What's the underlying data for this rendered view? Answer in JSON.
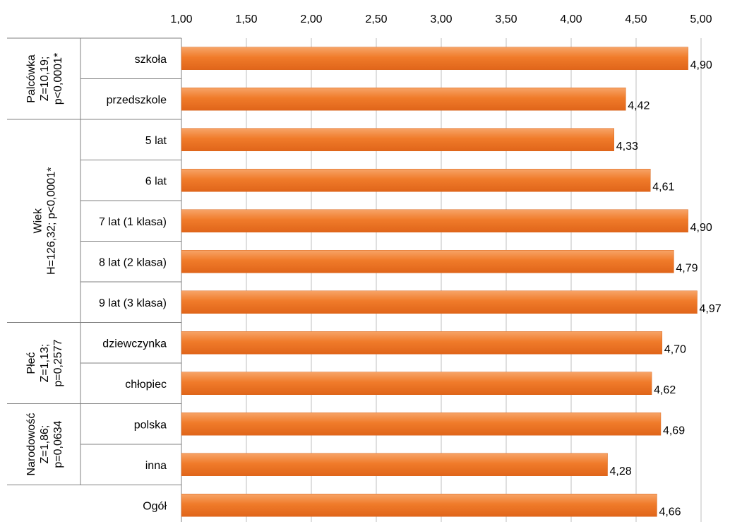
{
  "chart_data": {
    "type": "bar",
    "orientation": "horizontal",
    "xlim": [
      1.0,
      5.0
    ],
    "ticks": [
      "1,00",
      "1,50",
      "2,00",
      "2,50",
      "3,00",
      "3,50",
      "4,00",
      "4,50",
      "5,00"
    ],
    "tick_values": [
      1.0,
      1.5,
      2.0,
      2.5,
      3.0,
      3.5,
      4.0,
      4.5,
      5.0
    ],
    "tick_position": "top",
    "grid": "vertical",
    "bar_color": "#f07b2a",
    "categories": [
      "szkoła",
      "przedszkole",
      "5 lat",
      "6 lat",
      "7 lat (1 klasa)",
      "8 lat (2 klasa)",
      "9 lat (3 klasa)",
      "dziewczynka",
      "chłopiec",
      "polska",
      "inna",
      "Ogół"
    ],
    "values": [
      4.9,
      4.42,
      4.33,
      4.61,
      4.9,
      4.79,
      4.97,
      4.7,
      4.62,
      4.69,
      4.28,
      4.66
    ],
    "value_labels": [
      "4,90",
      "4,42",
      "4,33",
      "4,61",
      "4,90",
      "4,79",
      "4,97",
      "4,70",
      "4,62",
      "4,69",
      "4,28",
      "4,66"
    ],
    "groups": [
      {
        "lines": [
          "Palcówka",
          "Z=10,19;",
          "p<0,0001*"
        ],
        "count": 2
      },
      {
        "lines": [
          "Wiek",
          "H=126,32; p<0,0001*"
        ],
        "count": 5
      },
      {
        "lines": [
          "Płeć",
          "Z=1,13;",
          "p=0,2577"
        ],
        "count": 2
      },
      {
        "lines": [
          "Narodowość",
          "Z=1,86;",
          "p=0,0634"
        ],
        "count": 2
      },
      {
        "lines": [],
        "count": 1
      }
    ]
  }
}
